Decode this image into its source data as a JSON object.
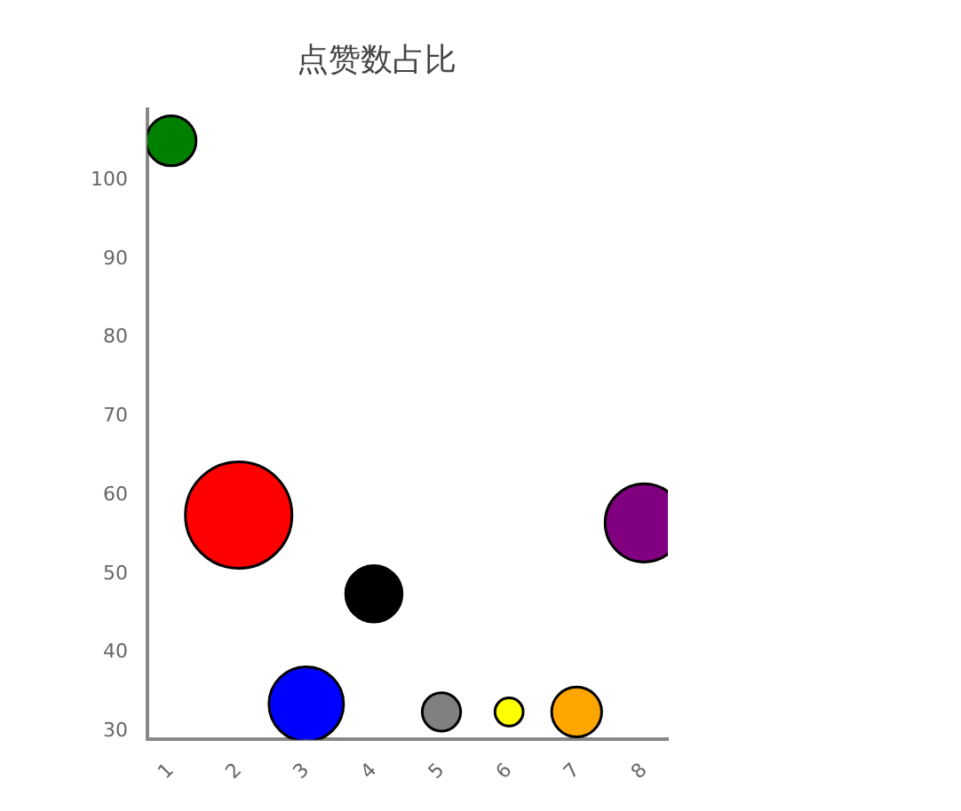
{
  "chart_data": {
    "type": "bubble",
    "title": "点赞数占比",
    "x": [
      1,
      2,
      3,
      4,
      5,
      6,
      7,
      8
    ],
    "values": [
      105,
      57.5,
      33.5,
      47.5,
      32.5,
      32.5,
      32.5,
      56.5
    ],
    "sizes": [
      0.22,
      1,
      0.49,
      0.28,
      0.13,
      0.07,
      0.22,
      0.54
    ],
    "colors": [
      "#008000",
      "#ff0000",
      "#0000ff",
      "#000000",
      "#808080",
      "#ffff00",
      "#ffa500",
      "#800080"
    ],
    "xlim": [
      0.65,
      8.35
    ],
    "xticks": [
      1,
      2,
      3,
      4,
      5,
      6,
      7,
      8
    ],
    "ylim": [
      29,
      109
    ],
    "yticks": [
      30,
      40,
      50,
      60,
      70,
      80,
      90,
      100
    ],
    "grid": false,
    "legend": false
  }
}
